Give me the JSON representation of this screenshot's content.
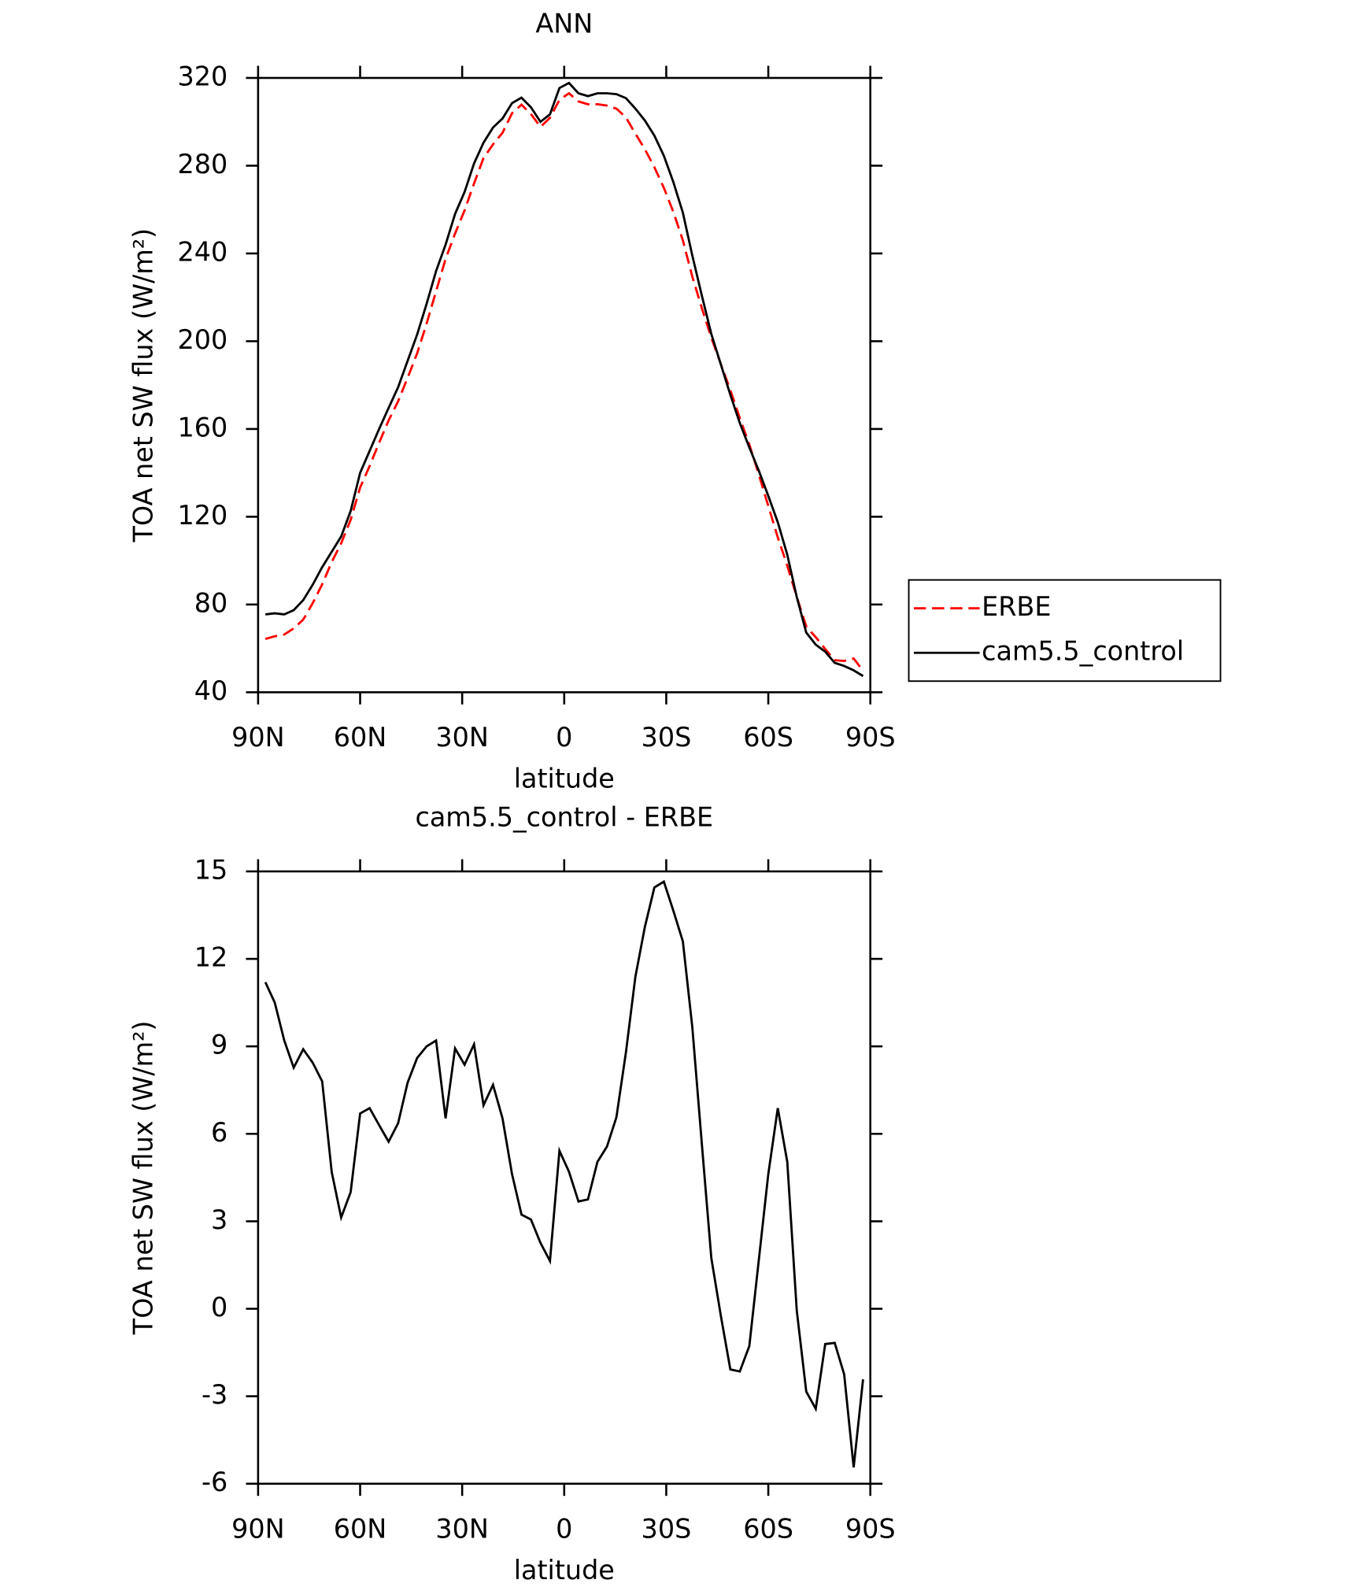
{
  "chart_data": [
    {
      "type": "line",
      "title": "ANN",
      "x_label": "latitude",
      "y_label": "TOA net SW flux (W/m²)",
      "x": [
        87.86,
        85.1,
        82.31,
        79.53,
        76.74,
        73.95,
        71.16,
        68.37,
        65.58,
        62.79,
        60.0,
        57.21,
        54.42,
        51.63,
        48.84,
        46.05,
        43.25,
        40.46,
        37.67,
        34.88,
        32.09,
        29.3,
        26.51,
        23.72,
        20.93,
        18.14,
        15.35,
        12.56,
        9.77,
        6.98,
        4.19,
        1.4,
        -1.4,
        -4.19,
        -6.98,
        -9.77,
        -12.56,
        -15.35,
        -18.14,
        -20.93,
        -23.72,
        -26.51,
        -29.3,
        -32.09,
        -34.88,
        -37.67,
        -40.46,
        -43.25,
        -46.05,
        -48.84,
        -51.63,
        -54.42,
        -57.21,
        -60.0,
        -62.79,
        -65.58,
        -68.37,
        -71.16,
        -73.95,
        -76.74,
        -79.53,
        -82.31,
        -85.1,
        -87.86
      ],
      "series": [
        {
          "name": "ERBE",
          "color": "#ff0000",
          "dash": "dashed",
          "values": [
            64.3,
            65.5,
            66.3,
            69.1,
            73.1,
            80.6,
            89.2,
            99.3,
            107.9,
            118.6,
            133.3,
            143.1,
            153.7,
            163.9,
            172.6,
            183.3,
            194.4,
            208,
            222.8,
            237.5,
            249.1,
            259.6,
            271.9,
            283.5,
            289.7,
            295,
            303.9,
            307.8,
            303.5,
            297.7,
            301.8,
            310,
            313,
            309.3,
            308,
            308,
            307.4,
            306,
            302,
            294.6,
            287.5,
            279.3,
            269.9,
            258.9,
            246,
            229.4,
            215.1,
            201.6,
            189.6,
            177.7,
            164.9,
            152.9,
            139.3,
            124.9,
            110.6,
            97.7,
            83.5,
            70,
            65.1,
            59.7,
            54.6,
            54.3,
            55.4,
            49.8
          ]
        },
        {
          "name": "cam5.5_control",
          "color": "#000000",
          "dash": "solid",
          "values": [
            75.5,
            76,
            75.5,
            77.4,
            82,
            89,
            97,
            104,
            111,
            122.6,
            140,
            150,
            160,
            169.6,
            179,
            191,
            203,
            217,
            232,
            244,
            258,
            268,
            281,
            290.5,
            297.4,
            301.5,
            308.5,
            311,
            306.6,
            300,
            303.4,
            315.4,
            317.7,
            313,
            311.7,
            313,
            313,
            312.6,
            310.8,
            306,
            300.6,
            293.7,
            284.5,
            272.5,
            258.6,
            239,
            220.8,
            203.3,
            189.4,
            175.6,
            162.7,
            151.6,
            141,
            129.5,
            117.5,
            102.7,
            83.4,
            67.2,
            61.7,
            58.5,
            53.4,
            52,
            50,
            47.4
          ]
        }
      ],
      "xlim": [
        90,
        -90
      ],
      "xticks": [
        {
          "value": 90,
          "label": "90N"
        },
        {
          "value": 60,
          "label": "60N"
        },
        {
          "value": 30,
          "label": "30N"
        },
        0,
        {
          "value": -30,
          "label": "30S"
        },
        {
          "value": -60,
          "label": "60S"
        },
        {
          "value": -90,
          "label": "90S"
        }
      ],
      "ylim": [
        40,
        320
      ],
      "yticks": [
        40,
        80,
        120,
        160,
        200,
        240,
        280,
        320
      ],
      "legend": "right"
    },
    {
      "type": "line",
      "title": "cam5.5_control - ERBE",
      "x_label": "latitude",
      "y_label": "TOA net SW flux (W/m²)",
      "x": [
        87.86,
        85.1,
        82.31,
        79.53,
        76.74,
        73.95,
        71.16,
        68.37,
        65.58,
        62.79,
        60.0,
        57.21,
        54.42,
        51.63,
        48.84,
        46.05,
        43.25,
        40.46,
        37.67,
        34.88,
        32.09,
        29.3,
        26.51,
        23.72,
        20.93,
        18.14,
        15.35,
        12.56,
        9.77,
        6.98,
        4.19,
        1.4,
        -1.4,
        -4.19,
        -6.98,
        -9.77,
        -12.56,
        -15.35,
        -18.14,
        -20.93,
        -23.72,
        -26.51,
        -29.3,
        -32.09,
        -34.88,
        -37.67,
        -40.46,
        -43.25,
        -46.05,
        -48.84,
        -51.63,
        -54.42,
        -57.21,
        -60.0,
        -62.79,
        -65.58,
        -68.37,
        -71.16,
        -73.95,
        -76.74,
        -79.53,
        -82.31,
        -85.1,
        -87.86
      ],
      "series": [
        {
          "color": "#000000",
          "dash": "solid",
          "values": [
            11.2,
            10.5,
            9.2,
            8.27,
            8.9,
            8.44,
            7.8,
            4.7,
            3.13,
            4.0,
            6.7,
            6.88,
            6.3,
            5.73,
            6.36,
            7.75,
            8.6,
            9.0,
            9.2,
            6.53,
            8.93,
            8.37,
            9.07,
            6.98,
            7.68,
            6.53,
            4.62,
            3.23,
            3.06,
            2.26,
            1.64,
            5.42,
            4.7,
            3.68,
            3.75,
            5.04,
            5.56,
            6.57,
            8.79,
            11.39,
            13.1,
            14.45,
            14.65,
            13.65,
            12.6,
            9.65,
            5.66,
            1.74,
            -0.24,
            -2.08,
            -2.15,
            -1.28,
            1.67,
            4.62,
            6.88,
            5.04,
            -0.06,
            -2.84,
            -3.43,
            -1.21,
            -1.17,
            -2.25,
            -5.44,
            -2.42
          ]
        }
      ],
      "xlim": [
        90,
        -90
      ],
      "xticks": [
        {
          "value": 90,
          "label": "90N"
        },
        {
          "value": 60,
          "label": "60N"
        },
        {
          "value": 30,
          "label": "30N"
        },
        0,
        {
          "value": -30,
          "label": "30S"
        },
        {
          "value": -60,
          "label": "60S"
        },
        {
          "value": -90,
          "label": "90S"
        }
      ],
      "ylim": [
        -6,
        15
      ],
      "yticks": [
        -6,
        -3,
        0,
        3,
        6,
        9,
        12,
        15
      ]
    }
  ]
}
